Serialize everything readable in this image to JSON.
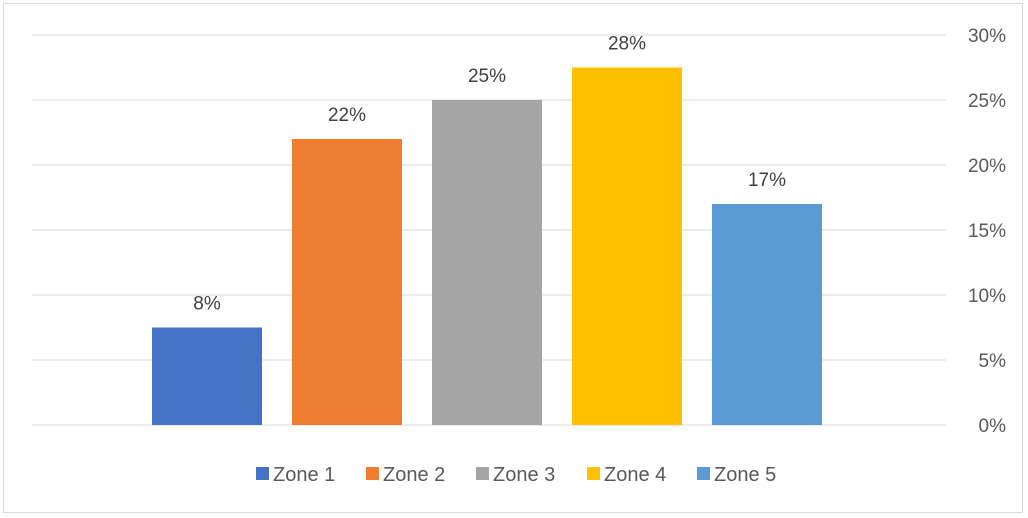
{
  "chart_data": {
    "type": "bar",
    "categories": [
      "Zone 1",
      "Zone 2",
      "Zone 3",
      "Zone 4",
      "Zone 5"
    ],
    "values": [
      7.5,
      22,
      25,
      27.5,
      17
    ],
    "data_labels": [
      "8%",
      "22%",
      "25%",
      "28%",
      "17%"
    ],
    "colors": [
      "#4472C4",
      "#ED7D31",
      "#A5A5A5",
      "#FFC000",
      "#5B9BD5"
    ],
    "ylim": [
      0,
      30
    ],
    "y_ticks": [
      0,
      5,
      10,
      15,
      20,
      25,
      30
    ],
    "y_tick_labels": [
      "0%",
      "5%",
      "10%",
      "15%",
      "20%",
      "25%",
      "30%"
    ],
    "y_axis_side": "right",
    "grid": true,
    "legend": "bottom",
    "gridline_color": "#d9d9d9"
  }
}
